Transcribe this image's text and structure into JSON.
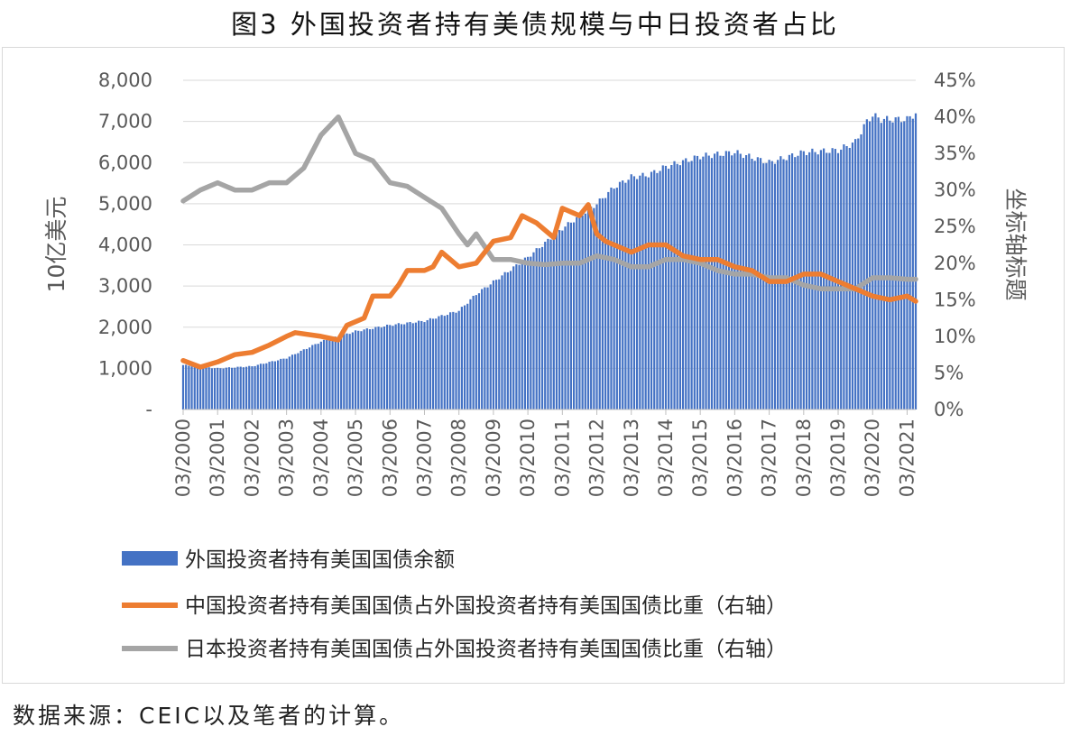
{
  "title": "图3  外国投资者持有美债规模与中日投资者占比",
  "source": "数据来源：CEIC以及笔者的计算。",
  "chart_data": {
    "type": "bar+line",
    "y_left": {
      "label": "10亿美元",
      "min": 0,
      "max": 8000,
      "ticks": [
        "-",
        "1,000",
        "2,000",
        "3,000",
        "4,000",
        "5,000",
        "6,000",
        "7,000",
        "8,000"
      ]
    },
    "y_right": {
      "label": "坐标轴标题",
      "min": 0,
      "max": 45,
      "ticks": [
        "0%",
        "5%",
        "10%",
        "15%",
        "20%",
        "25%",
        "30%",
        "35%",
        "40%",
        "45%"
      ]
    },
    "x_ticks": [
      "03/2000",
      "03/2001",
      "03/2002",
      "03/2003",
      "03/2004",
      "03/2005",
      "03/2006",
      "03/2007",
      "03/2008",
      "03/2009",
      "03/2010",
      "03/2011",
      "03/2012",
      "03/2013",
      "03/2014",
      "03/2015",
      "03/2016",
      "03/2017",
      "03/2018",
      "03/2019",
      "03/2020",
      "03/2021"
    ],
    "x_range": [
      "03/2000",
      "06/2021"
    ],
    "grid": "horizontal",
    "legend_position": "bottom",
    "series": [
      {
        "name": "外国投资者持有美国国债余额",
        "type": "bar",
        "axis": "left",
        "color": "#4472C4",
        "points": [
          [
            "03/2000",
            1080
          ],
          [
            "03/2001",
            1000
          ],
          [
            "03/2002",
            1050
          ],
          [
            "03/2003",
            1250
          ],
          [
            "06/2003",
            1350
          ],
          [
            "03/2004",
            1650
          ],
          [
            "03/2005",
            1900
          ],
          [
            "03/2006",
            2050
          ],
          [
            "03/2007",
            2150
          ],
          [
            "03/2008",
            2400
          ],
          [
            "09/2008",
            2800
          ],
          [
            "03/2009",
            3100
          ],
          [
            "03/2010",
            3700
          ],
          [
            "03/2011",
            4400
          ],
          [
            "03/2012",
            5000
          ],
          [
            "09/2012",
            5400
          ],
          [
            "03/2013",
            5650
          ],
          [
            "09/2013",
            5700
          ],
          [
            "03/2014",
            5900
          ],
          [
            "03/2015",
            6150
          ],
          [
            "03/2016",
            6250
          ],
          [
            "03/2017",
            6000
          ],
          [
            "03/2018",
            6250
          ],
          [
            "03/2019",
            6300
          ],
          [
            "09/2019",
            6500
          ],
          [
            "01/2020",
            7000
          ],
          [
            "03/2020",
            7150
          ],
          [
            "06/2020",
            7050
          ],
          [
            "03/2021",
            7050
          ],
          [
            "06/2021",
            7200
          ]
        ]
      },
      {
        "name": "中国投资者持有美国国债占外国投资者持有美国国债比重（右轴）",
        "type": "line",
        "axis": "right",
        "color": "#ED7D31",
        "points": [
          [
            "03/2000",
            6.7
          ],
          [
            "09/2000",
            5.8
          ],
          [
            "03/2001",
            6.5
          ],
          [
            "09/2001",
            7.5
          ],
          [
            "03/2002",
            7.8
          ],
          [
            "09/2002",
            8.8
          ],
          [
            "03/2003",
            10.0
          ],
          [
            "06/2003",
            10.5
          ],
          [
            "03/2004",
            10.0
          ],
          [
            "09/2004",
            9.5
          ],
          [
            "12/2004",
            11.5
          ],
          [
            "06/2005",
            12.5
          ],
          [
            "09/2005",
            15.5
          ],
          [
            "03/2006",
            15.5
          ],
          [
            "06/2006",
            17.0
          ],
          [
            "09/2006",
            19.0
          ],
          [
            "03/2007",
            19.0
          ],
          [
            "06/2007",
            19.5
          ],
          [
            "09/2007",
            21.5
          ],
          [
            "03/2008",
            19.5
          ],
          [
            "09/2008",
            20.0
          ],
          [
            "03/2009",
            23.0
          ],
          [
            "09/2009",
            23.5
          ],
          [
            "01/2010",
            26.5
          ],
          [
            "06/2010",
            25.5
          ],
          [
            "12/2010",
            23.5
          ],
          [
            "03/2011",
            27.5
          ],
          [
            "09/2011",
            26.5
          ],
          [
            "12/2011",
            28.0
          ],
          [
            "03/2012",
            24.0
          ],
          [
            "06/2012",
            23.0
          ],
          [
            "03/2013",
            21.5
          ],
          [
            "09/2013",
            22.5
          ],
          [
            "03/2014",
            22.5
          ],
          [
            "09/2014",
            21.0
          ],
          [
            "03/2015",
            20.5
          ],
          [
            "09/2015",
            20.5
          ],
          [
            "03/2016",
            19.5
          ],
          [
            "09/2016",
            19.0
          ],
          [
            "03/2017",
            17.5
          ],
          [
            "09/2017",
            17.5
          ],
          [
            "03/2018",
            18.5
          ],
          [
            "09/2018",
            18.5
          ],
          [
            "03/2019",
            17.5
          ],
          [
            "09/2019",
            16.5
          ],
          [
            "03/2020",
            15.5
          ],
          [
            "09/2020",
            15.0
          ],
          [
            "03/2021",
            15.5
          ],
          [
            "06/2021",
            14.8
          ]
        ]
      },
      {
        "name": "日本投资者持有美国国债占外国投资者持有美国国债比重（右轴）",
        "type": "line",
        "axis": "right",
        "color": "#A5A5A5",
        "points": [
          [
            "03/2000",
            28.5
          ],
          [
            "09/2000",
            30.0
          ],
          [
            "03/2001",
            31.0
          ],
          [
            "09/2001",
            30.0
          ],
          [
            "03/2002",
            30.0
          ],
          [
            "09/2002",
            31.0
          ],
          [
            "03/2003",
            31.0
          ],
          [
            "09/2003",
            33.0
          ],
          [
            "03/2004",
            37.5
          ],
          [
            "09/2004",
            40.0
          ],
          [
            "03/2005",
            35.0
          ],
          [
            "09/2005",
            34.0
          ],
          [
            "03/2006",
            31.0
          ],
          [
            "09/2006",
            30.5
          ],
          [
            "03/2007",
            29.0
          ],
          [
            "09/2007",
            27.5
          ],
          [
            "03/2008",
            24.0
          ],
          [
            "06/2008",
            22.5
          ],
          [
            "09/2008",
            24.0
          ],
          [
            "03/2009",
            20.5
          ],
          [
            "09/2009",
            20.5
          ],
          [
            "03/2010",
            20.0
          ],
          [
            "09/2010",
            19.8
          ],
          [
            "03/2011",
            20.0
          ],
          [
            "09/2011",
            20.0
          ],
          [
            "03/2012",
            21.0
          ],
          [
            "09/2012",
            20.5
          ],
          [
            "03/2013",
            19.5
          ],
          [
            "09/2013",
            19.5
          ],
          [
            "03/2014",
            20.5
          ],
          [
            "09/2014",
            20.5
          ],
          [
            "03/2015",
            20.0
          ],
          [
            "09/2015",
            19.0
          ],
          [
            "03/2016",
            18.5
          ],
          [
            "09/2016",
            18.5
          ],
          [
            "03/2017",
            18.0
          ],
          [
            "09/2017",
            18.0
          ],
          [
            "03/2018",
            17.0
          ],
          [
            "09/2018",
            16.5
          ],
          [
            "03/2019",
            16.5
          ],
          [
            "09/2019",
            16.5
          ],
          [
            "03/2020",
            18.0
          ],
          [
            "09/2020",
            18.0
          ],
          [
            "03/2021",
            17.8
          ],
          [
            "06/2021",
            17.8
          ]
        ]
      }
    ]
  }
}
